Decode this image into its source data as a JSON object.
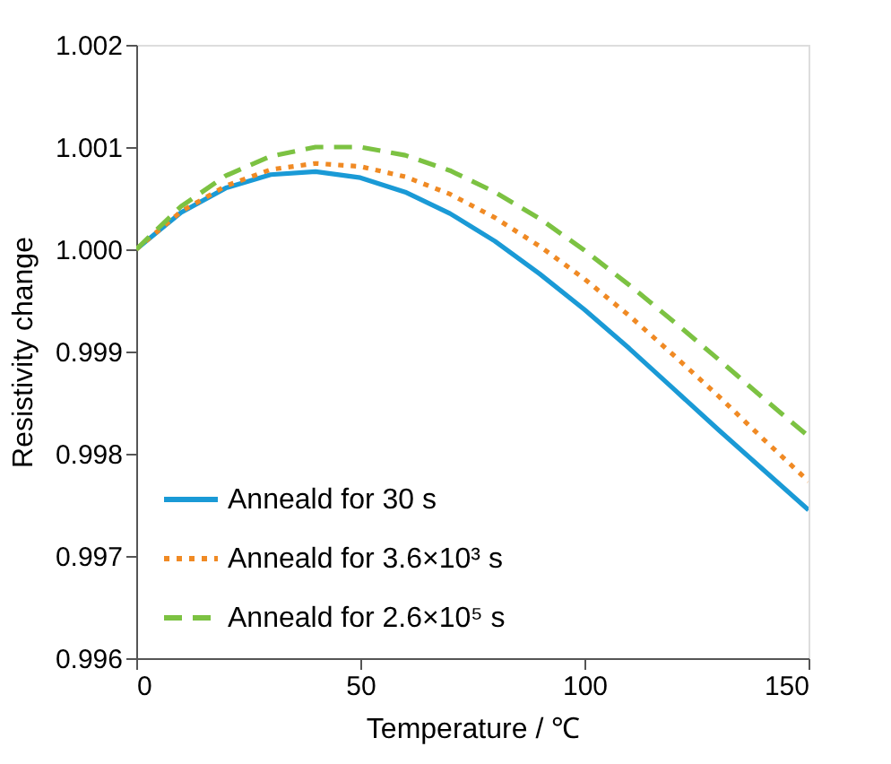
{
  "chart_data": {
    "type": "line",
    "xlabel": "Temperature / ℃",
    "ylabel": "Resistivity change",
    "x": [
      0,
      10,
      20,
      30,
      40,
      50,
      60,
      70,
      80,
      90,
      100,
      110,
      120,
      130,
      140,
      150
    ],
    "series": [
      {
        "name": "Anneald for 30 s",
        "color": "#1a9ad6",
        "line_style": "solid",
        "values": [
          1.0,
          1.00036,
          1.0006,
          1.00073,
          1.00076,
          1.0007,
          1.00056,
          1.00035,
          1.00008,
          0.99976,
          0.99941,
          0.99903,
          0.99863,
          0.99823,
          0.99784,
          0.99745
        ]
      },
      {
        "name": "Anneald for 3.6×10³ s",
        "color": "#f08a24",
        "line_style": "dotted",
        "values": [
          1.0,
          1.00037,
          1.00062,
          1.00078,
          1.00084,
          1.00081,
          1.00071,
          1.00054,
          1.00031,
          1.00003,
          0.99971,
          0.99935,
          0.99896,
          0.99856,
          0.99814,
          0.99773
        ]
      },
      {
        "name": "Anneald for 2.6×10⁵ s",
        "color": "#7cc242",
        "line_style": "dashed",
        "values": [
          1.0,
          1.00042,
          1.00072,
          1.00091,
          1.001,
          1.001,
          1.00092,
          1.00077,
          1.00056,
          1.0003,
          0.99999,
          0.99965,
          0.99929,
          0.99892,
          0.99854,
          0.99817
        ]
      }
    ],
    "xlim": [
      0,
      150
    ],
    "xticks": [
      0,
      50,
      100,
      150
    ],
    "ylim": [
      0.996,
      1.002
    ],
    "yticks": [
      {
        "value": 0.996,
        "label": "0.996"
      },
      {
        "value": 0.997,
        "label": "0.997"
      },
      {
        "value": 0.998,
        "label": "0.998"
      },
      {
        "value": 0.999,
        "label": "0.999"
      },
      {
        "value": 1.0,
        "label": "1.000"
      },
      {
        "value": 1.001,
        "label": "1.001"
      },
      {
        "value": 1.002,
        "label": "1.002"
      }
    ],
    "grid": false,
    "legend": "bottom left",
    "marker": "none"
  }
}
